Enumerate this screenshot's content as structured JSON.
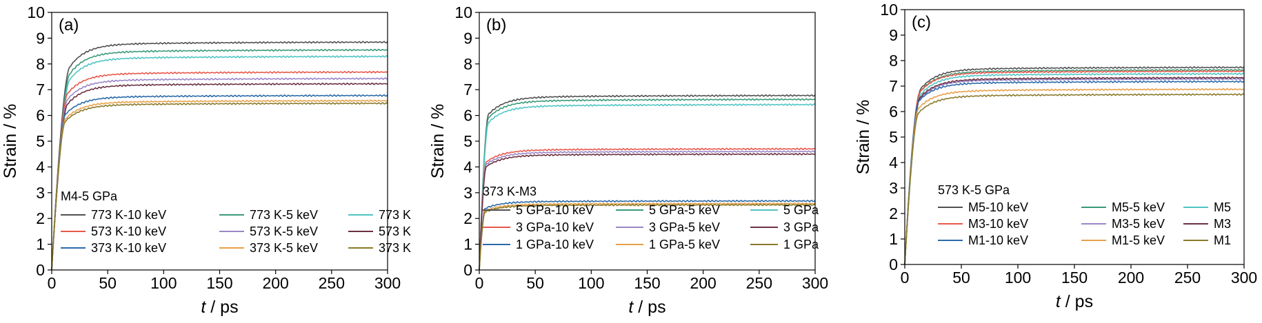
{
  "chart_data": [
    {
      "type": "line",
      "panel_label": "(a)",
      "xlabel_italic": "t",
      "xlabel_rest": " / ps",
      "ylabel": "Strain / %",
      "xlim": [
        0,
        300
      ],
      "ylim": [
        0,
        10
      ],
      "xticks": [
        0,
        50,
        100,
        150,
        200,
        250,
        300
      ],
      "yticks": [
        0,
        1,
        2,
        3,
        4,
        5,
        6,
        7,
        8,
        9,
        10
      ],
      "legend_title": "M4-5 GPa",
      "legend_placement": "bottom",
      "series": [
        {
          "name": "773 K-10 keV",
          "color": "#505050",
          "plateau": 8.75,
          "rise_time": 16
        },
        {
          "name": "773 K-5 keV",
          "color": "#3a9a78",
          "plateau": 8.45,
          "rise_time": 16
        },
        {
          "name": "773 K",
          "color": "#4fc4c4",
          "plateau": 8.2,
          "rise_time": 16
        },
        {
          "name": "573 K-10 keV",
          "color": "#e8574a",
          "plateau": 7.6,
          "rise_time": 14
        },
        {
          "name": "573 K-5 keV",
          "color": "#9a86c8",
          "plateau": 7.35,
          "rise_time": 14
        },
        {
          "name": "573 K",
          "color": "#6a3040",
          "plateau": 7.15,
          "rise_time": 14
        },
        {
          "name": "373 K-10 keV",
          "color": "#2a6aa8",
          "plateau": 6.7,
          "rise_time": 12
        },
        {
          "name": "373 K-5 keV",
          "color": "#e8a048",
          "plateau": 6.5,
          "rise_time": 12
        },
        {
          "name": "373 K",
          "color": "#8a7a2a",
          "plateau": 6.4,
          "rise_time": 12
        }
      ]
    },
    {
      "type": "line",
      "panel_label": "(b)",
      "xlabel_italic": "t",
      "xlabel_rest": " / ps",
      "ylabel": "Strain / %",
      "xlim": [
        0,
        300
      ],
      "ylim": [
        0,
        10
      ],
      "xticks": [
        0,
        50,
        100,
        150,
        200,
        250,
        300
      ],
      "yticks": [
        0,
        1,
        2,
        3,
        4,
        5,
        6,
        7,
        8,
        9,
        10
      ],
      "legend_title": "373 K-M3",
      "legend_placement": "bottom",
      "series": [
        {
          "name": "5 GPa-10 keV",
          "color": "#505050",
          "plateau": 6.7,
          "rise_time": 8
        },
        {
          "name": "5 GPa-5 keV",
          "color": "#3a9a78",
          "plateau": 6.55,
          "rise_time": 8
        },
        {
          "name": "5 GPa",
          "color": "#4fc4c4",
          "plateau": 6.35,
          "rise_time": 8
        },
        {
          "name": "3 GPa-10 keV",
          "color": "#e8574a",
          "plateau": 4.65,
          "rise_time": 6
        },
        {
          "name": "3 GPa-5 keV",
          "color": "#9a86c8",
          "plateau": 4.55,
          "rise_time": 6
        },
        {
          "name": "3 GPa",
          "color": "#6a3040",
          "plateau": 4.45,
          "rise_time": 6
        },
        {
          "name": "1 GPa-10 keV",
          "color": "#2a6aa8",
          "plateau": 2.65,
          "rise_time": 5
        },
        {
          "name": "1 GPa-5 keV",
          "color": "#e8a048",
          "plateau": 2.55,
          "rise_time": 5
        },
        {
          "name": "1 GPa",
          "color": "#8a7a2a",
          "plateau": 2.5,
          "rise_time": 5
        }
      ]
    },
    {
      "type": "line",
      "panel_label": "(c)",
      "xlabel_italic": "t",
      "xlabel_rest": " / ps",
      "ylabel": "Strain / %",
      "xlim": [
        0,
        300
      ],
      "ylim": [
        0,
        10
      ],
      "xticks": [
        0,
        50,
        100,
        150,
        200,
        250,
        300
      ],
      "yticks": [
        0,
        1,
        2,
        3,
        4,
        5,
        6,
        7,
        8,
        9,
        10
      ],
      "legend_title": "573 K-5 GPa",
      "legend_placement": "bottom",
      "series": [
        {
          "name": "M5-10 keV",
          "color": "#505050",
          "plateau": 7.65,
          "rise_time": 14
        },
        {
          "name": "M5-5 keV",
          "color": "#3a9a78",
          "plateau": 7.55,
          "rise_time": 14
        },
        {
          "name": "M5",
          "color": "#4fc4c4",
          "plateau": 7.4,
          "rise_time": 14
        },
        {
          "name": "M3-10 keV",
          "color": "#e8574a",
          "plateau": 7.5,
          "rise_time": 13
        },
        {
          "name": "M3-5 keV",
          "color": "#9a86c8",
          "plateau": 7.2,
          "rise_time": 13
        },
        {
          "name": "M3",
          "color": "#6a3040",
          "plateau": 7.25,
          "rise_time": 13
        },
        {
          "name": "M1-10 keV",
          "color": "#2a6aa8",
          "plateau": 7.1,
          "rise_time": 12
        },
        {
          "name": "M1-5 keV",
          "color": "#e8a048",
          "plateau": 6.8,
          "rise_time": 12
        },
        {
          "name": "M1",
          "color": "#8a7a2a",
          "plateau": 6.6,
          "rise_time": 12
        }
      ]
    }
  ]
}
